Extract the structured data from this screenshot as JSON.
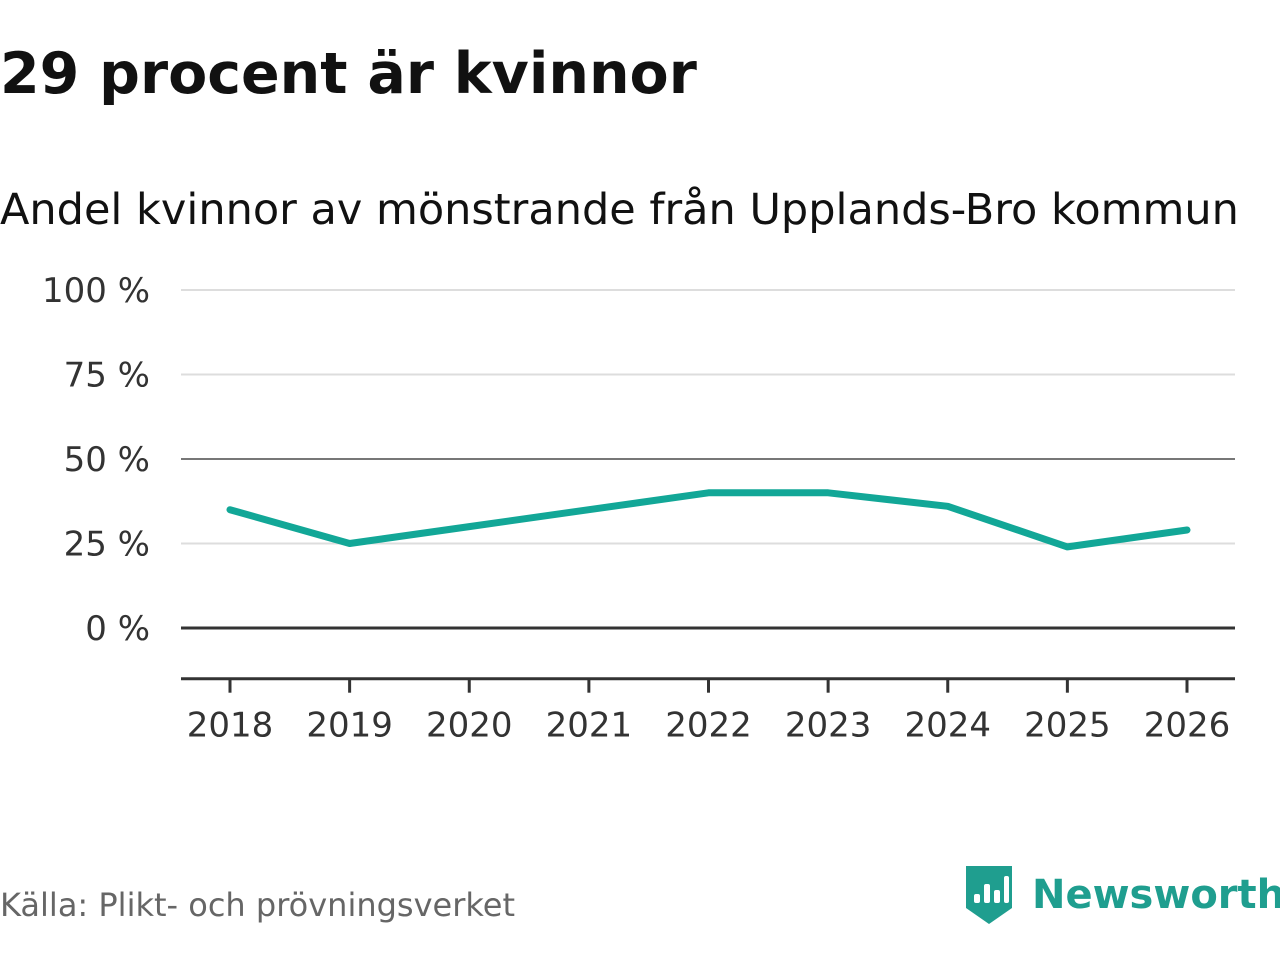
{
  "title": "29 procent är kvinnor",
  "subtitle": "Andel kvinnor av mönstrande från Upplands-Bro kommun",
  "source": "Källa: Plikt- och prövningsverket",
  "brand": {
    "name": "Newsworthy",
    "icon": "newsworthy-logo-icon",
    "color": "#1f9e8f"
  },
  "chart_data": {
    "type": "line",
    "title": "29 procent är kvinnor",
    "subtitle": "Andel kvinnor av mönstrande från Upplands-Bro kommun",
    "xlabel": "",
    "ylabel": "",
    "ylim": [
      -15,
      100
    ],
    "grid": true,
    "legend": "none",
    "y_ticks": [
      {
        "value": 100,
        "label": "100 %"
      },
      {
        "value": 75,
        "label": "75 %"
      },
      {
        "value": 50,
        "label": "50 %"
      },
      {
        "value": 25,
        "label": "25 %"
      },
      {
        "value": 0,
        "label": "0 %"
      }
    ],
    "categories": [
      "2018",
      "2019",
      "2020",
      "2021",
      "2022",
      "2023",
      "2024",
      "2025",
      "2026"
    ],
    "series": [
      {
        "name": "Andel kvinnor",
        "color": "#12a797",
        "values": [
          35,
          25,
          30,
          35,
          40,
          40,
          36,
          24,
          29
        ]
      }
    ]
  }
}
